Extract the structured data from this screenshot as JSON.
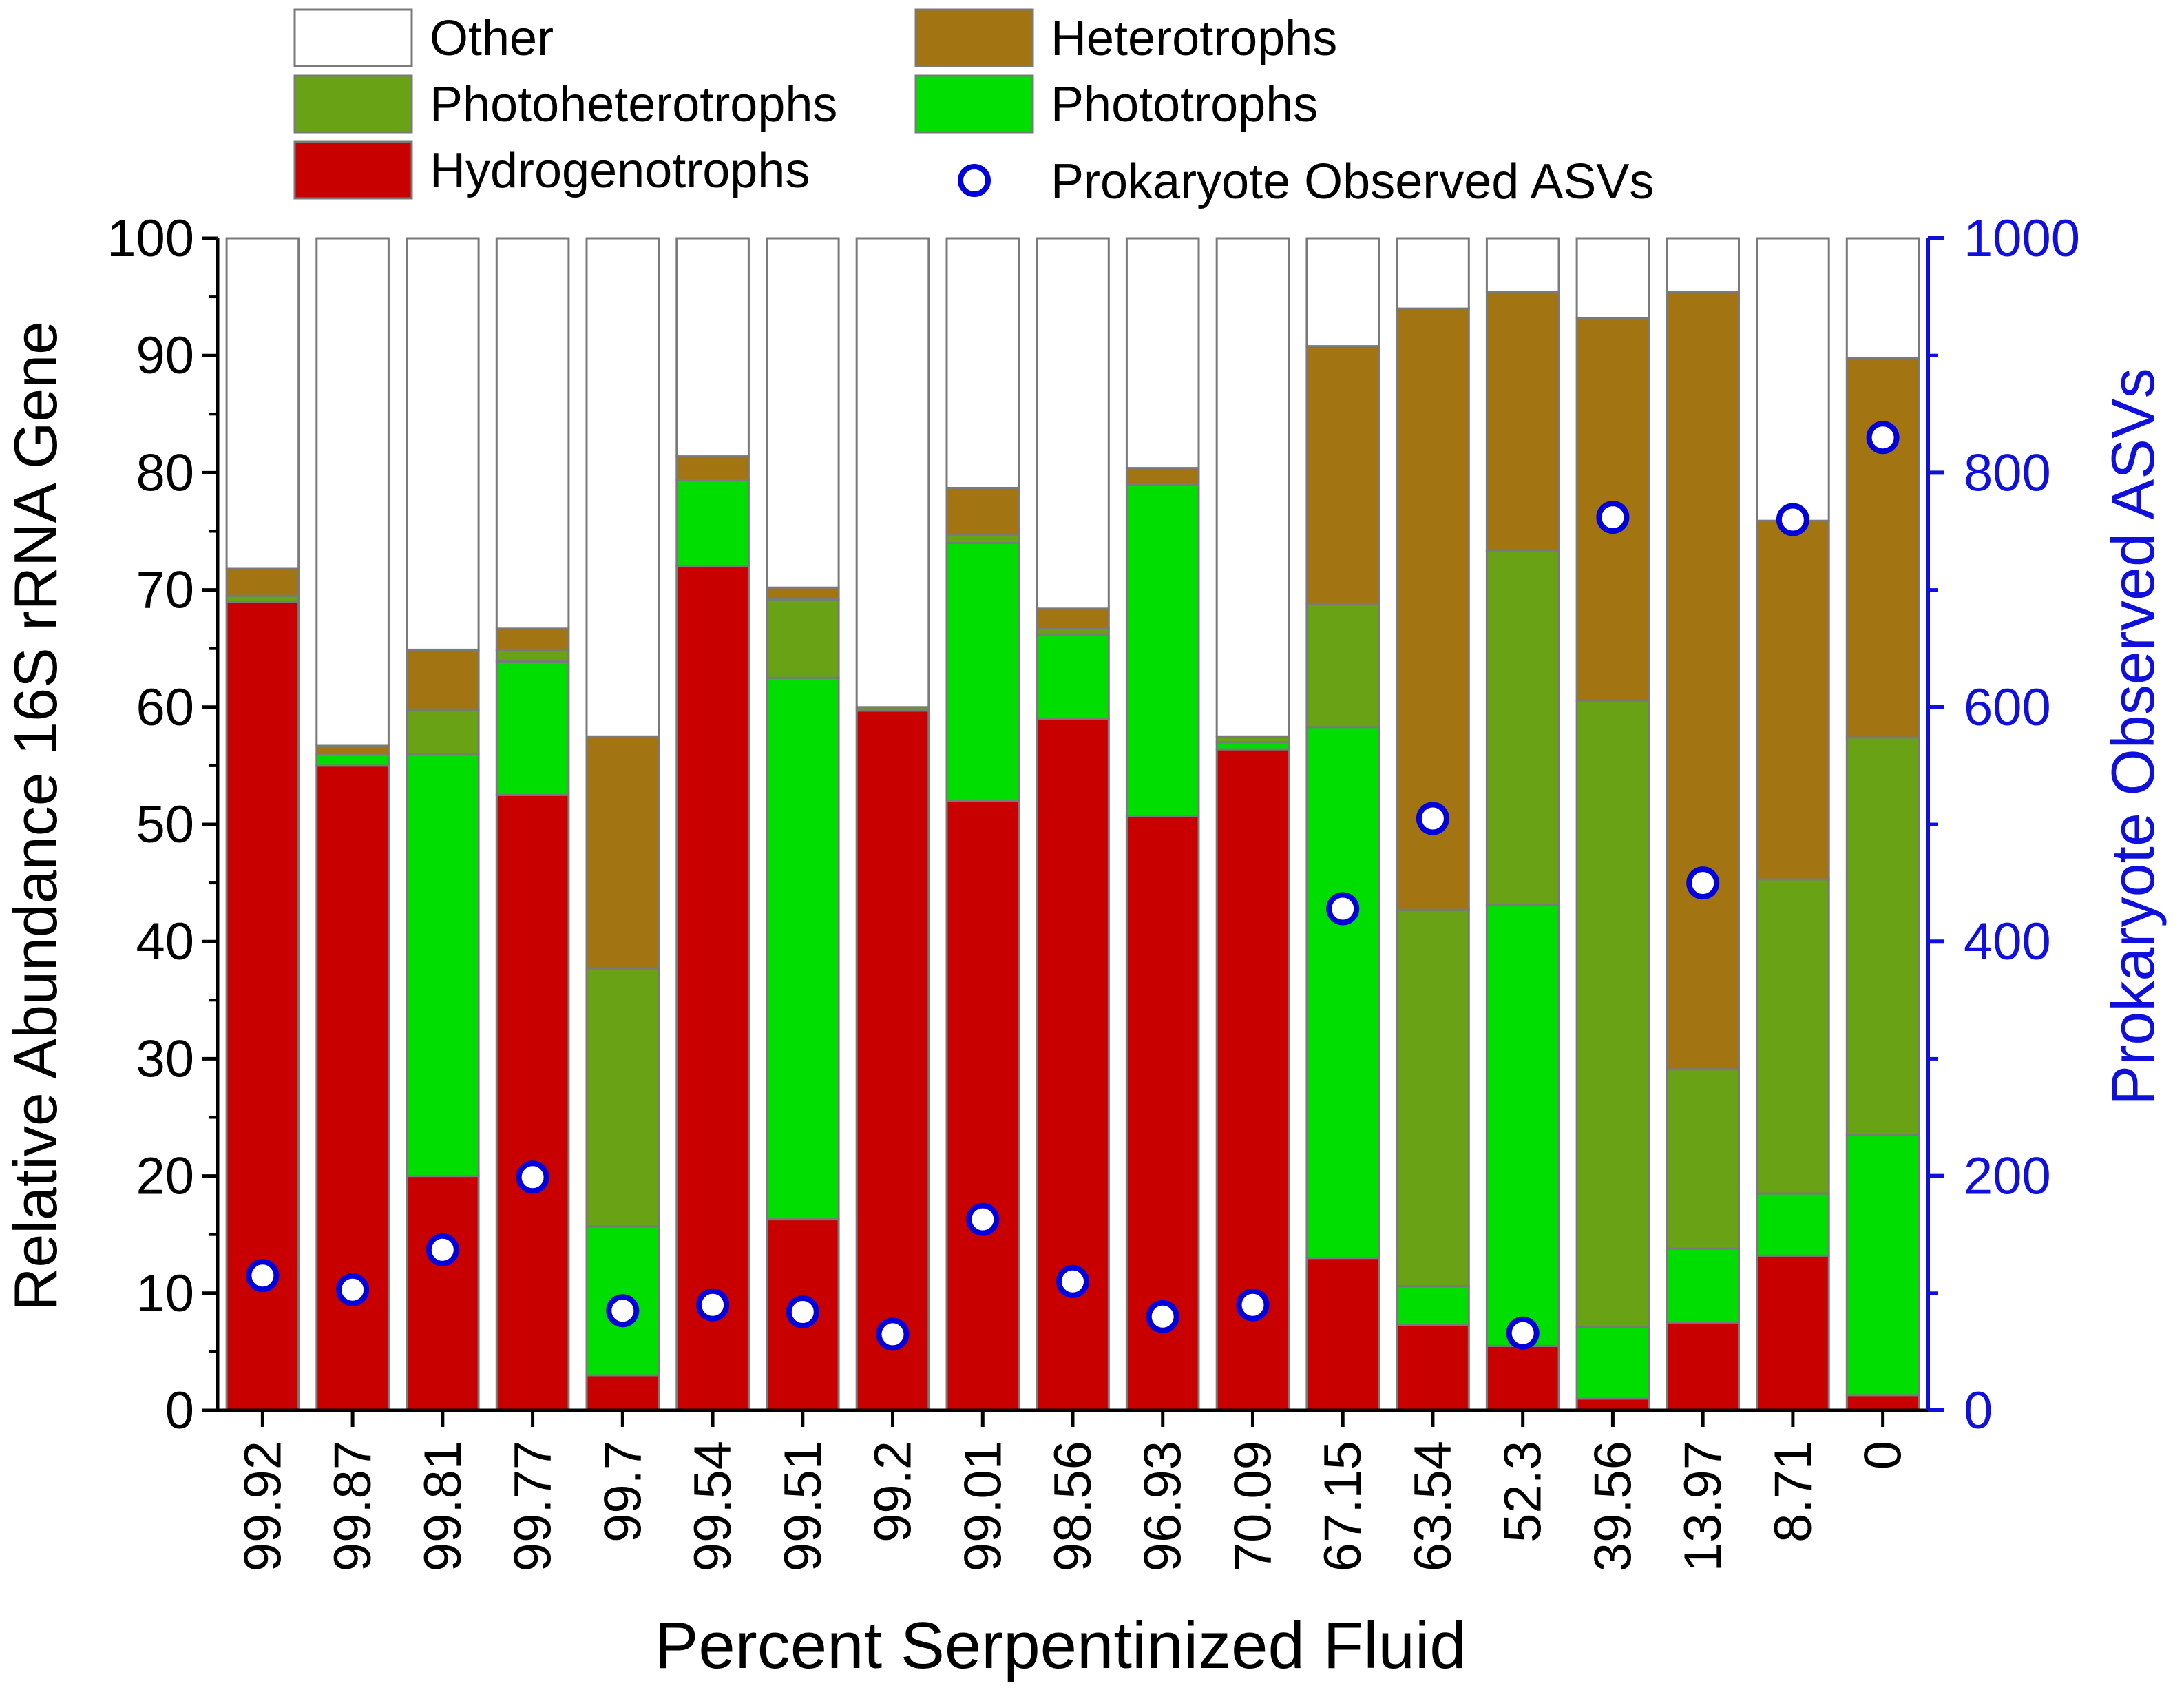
{
  "chart_data": {
    "type": "bar",
    "stacked": true,
    "xlabel": "Percent Serpentinized Fluid",
    "ylabel": "Relative Abundance 16S rRNA Gene",
    "y2label": "Prokaryote Observed ASVs",
    "ylim": [
      0,
      100
    ],
    "y2lim": [
      0,
      1000
    ],
    "yticks": [
      "0",
      "10",
      "20",
      "30",
      "40",
      "50",
      "60",
      "70",
      "80",
      "90",
      "100"
    ],
    "y2ticks": [
      "0",
      "200",
      "400",
      "600",
      "800",
      "1000"
    ],
    "categories": [
      "99.92",
      "99.87",
      "99.81",
      "99.77",
      "99.7",
      "99.54",
      "99.51",
      "99.2",
      "99.01",
      "98.56",
      "96.93",
      "70.09",
      "67.15",
      "63.54",
      "52.3",
      "39.56",
      "13.97",
      "8.71",
      "0"
    ],
    "series": [
      {
        "name": "Hydrogenotrophs",
        "color": "#c90000",
        "values": [
          69,
          55,
          20,
          52.5,
          3,
          72,
          16.3,
          59.7,
          52,
          59,
          50.7,
          56.4,
          13,
          7.3,
          5.5,
          1,
          7.5,
          13.2,
          1.3
        ]
      },
      {
        "name": "Phototrophs",
        "color": "#00dd00",
        "values": [
          0,
          1,
          36,
          11.4,
          12.7,
          7.4,
          46.2,
          0,
          22,
          7.2,
          28.3,
          0.6,
          45.3,
          3.3,
          37.6,
          6.1,
          6.3,
          5.3,
          22.2
        ]
      },
      {
        "name": "Photoheterotrophs",
        "color": "#6aa215",
        "values": [
          0.5,
          0,
          3.8,
          1,
          22,
          0,
          6.7,
          0.3,
          0.7,
          0.5,
          0,
          0.5,
          10.5,
          32.1,
          30.2,
          53.4,
          15.3,
          26.8,
          33.9
        ]
      },
      {
        "name": "Heterotrophs",
        "color": "#a37412",
        "values": [
          2.3,
          0.7,
          5.1,
          1.8,
          19.8,
          2,
          1,
          0,
          4,
          1.7,
          1.4,
          0,
          22,
          51.3,
          22.1,
          32.7,
          66.3,
          30.6,
          32.4
        ]
      },
      {
        "name": "Other",
        "color": "#ffffff",
        "values": [
          28.2,
          43.3,
          35.1,
          33.3,
          42.5,
          18.6,
          29.8,
          40,
          21.3,
          31.6,
          19.6,
          42.5,
          9.2,
          6,
          4.6,
          6.8,
          4.6,
          24.1,
          10.2
        ]
      }
    ],
    "scatter": {
      "name": "Prokaryote Observed ASVs",
      "axis": "right",
      "color": "#0000dd",
      "values": [
        115,
        103,
        137,
        199,
        85,
        90,
        84,
        65,
        163,
        110,
        80,
        90,
        428,
        505,
        66,
        762,
        450,
        760,
        830
      ]
    },
    "legend": {
      "placement": "top",
      "entries": [
        "Other",
        "Heterotrophs",
        "Photoheterotrophs",
        "Phototrophs",
        "Hydrogenotrophs",
        "Prokaryote Observed ASVs"
      ]
    }
  }
}
